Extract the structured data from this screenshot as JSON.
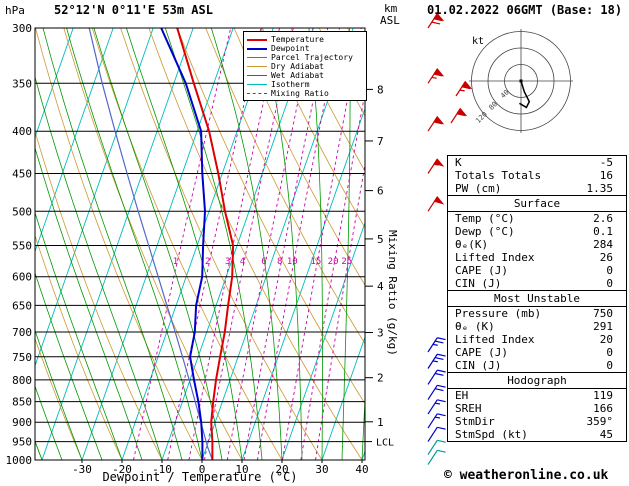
{
  "header": {
    "pressure_unit": "hPa",
    "station": "52°12'N 0°11'E 53m ASL",
    "datetime": "01.02.2022 06GMT (Base: 18)",
    "altitude_unit_top": "km",
    "altitude_unit_bottom": "ASL"
  },
  "axes": {
    "xlabel": "Dewpoint / Temperature (°C)",
    "right_label": "Mixing Ratio (g/kg)",
    "pressure_ticks": [
      300,
      350,
      400,
      450,
      500,
      550,
      600,
      650,
      700,
      750,
      800,
      850,
      900,
      950,
      1000
    ],
    "temp_ticks": [
      -30,
      -20,
      -10,
      0,
      10,
      20,
      30,
      40
    ],
    "km_ticks": [
      8,
      7,
      6,
      5,
      4,
      3,
      2,
      1
    ],
    "km_tick_pressures": [
      356,
      411,
      472,
      540,
      616,
      701,
      795,
      899
    ],
    "lcl_label": "LCL",
    "lcl_pressure": 950
  },
  "legend": {
    "items": [
      {
        "label": "Temperature",
        "color": "#dd0000",
        "weight": 2,
        "dash": false
      },
      {
        "label": "Dewpoint",
        "color": "#0000cc",
        "weight": 2,
        "dash": false
      },
      {
        "label": "Parcel Trajectory",
        "color": "#5566cc",
        "weight": 1,
        "dash": false
      },
      {
        "label": "Dry Adiabat",
        "color": "#cc9933",
        "weight": 1,
        "dash": false
      },
      {
        "label": "Wet Adiabat",
        "color": "#009900",
        "weight": 1,
        "dash": false
      },
      {
        "label": "Isotherm",
        "color": "#00bbbb",
        "weight": 1,
        "dash": false
      },
      {
        "label": "Mixing Ratio",
        "color": "#cc00aa",
        "weight": 1,
        "dash": true
      }
    ]
  },
  "stats": {
    "sections": [
      {
        "title": "",
        "rows": [
          [
            "K",
            "-5"
          ],
          [
            "Totals Totals",
            "16"
          ],
          [
            "PW (cm)",
            "1.35"
          ]
        ]
      },
      {
        "title": "Surface",
        "rows": [
          [
            "Temp (°C)",
            "2.6"
          ],
          [
            "Dewp (°C)",
            "0.1"
          ],
          [
            "θₑ(K)",
            "284"
          ],
          [
            "Lifted Index",
            "26"
          ],
          [
            "CAPE (J)",
            "0"
          ],
          [
            "CIN (J)",
            "0"
          ]
        ]
      },
      {
        "title": "Most Unstable",
        "rows": [
          [
            "Pressure (mb)",
            "750"
          ],
          [
            "θₑ (K)",
            "291"
          ],
          [
            "Lifted Index",
            "20"
          ],
          [
            "CAPE (J)",
            "0"
          ],
          [
            "CIN (J)",
            "0"
          ]
        ]
      },
      {
        "title": "Hodograph",
        "rows": [
          [
            "EH",
            "119"
          ],
          [
            "SREH",
            "166"
          ],
          [
            "StmDir",
            "359°"
          ],
          [
            "StmSpd (kt)",
            "45"
          ]
        ]
      }
    ]
  },
  "footer": {
    "copyright": "© weatheronline.co.uk"
  },
  "chart_data": {
    "type": "skewt-log-p",
    "pressure_range": [
      300,
      1000
    ],
    "temperature_profile": [
      [
        1000,
        2.6
      ],
      [
        950,
        1.0
      ],
      [
        900,
        -1.0
      ],
      [
        850,
        -2.3
      ],
      [
        800,
        -3.5
      ],
      [
        750,
        -4.5
      ],
      [
        700,
        -5.5
      ],
      [
        650,
        -7.0
      ],
      [
        600,
        -8.5
      ],
      [
        550,
        -11.0
      ],
      [
        500,
        -16.0
      ],
      [
        450,
        -21.0
      ],
      [
        400,
        -27.0
      ],
      [
        350,
        -35.0
      ],
      [
        300,
        -44.0
      ]
    ],
    "dewpoint_profile": [
      [
        1000,
        0.1
      ],
      [
        950,
        -1.5
      ],
      [
        900,
        -3.5
      ],
      [
        850,
        -6.0
      ],
      [
        800,
        -9.0
      ],
      [
        750,
        -12.0
      ],
      [
        700,
        -13.0
      ],
      [
        650,
        -15.0
      ],
      [
        600,
        -16.0
      ],
      [
        550,
        -18.5
      ],
      [
        500,
        -21.0
      ],
      [
        450,
        -25.0
      ],
      [
        400,
        -29.0
      ],
      [
        350,
        -37.0
      ],
      [
        300,
        -48.0
      ]
    ],
    "parcel_profile": [
      [
        1000,
        2.6
      ],
      [
        965,
        0.3
      ],
      [
        900,
        -3.6
      ],
      [
        850,
        -6.8
      ],
      [
        800,
        -10.2
      ],
      [
        750,
        -13.9
      ],
      [
        700,
        -17.9
      ],
      [
        650,
        -22.3
      ],
      [
        600,
        -27.0
      ],
      [
        550,
        -32.1
      ],
      [
        500,
        -37.7
      ],
      [
        450,
        -43.8
      ],
      [
        400,
        -50.5
      ],
      [
        350,
        -57.9
      ],
      [
        300,
        -66.0
      ]
    ],
    "profile_colors": {
      "temperature": "#dd0000",
      "dewpoint": "#0000cc",
      "parcel": "#5566cc"
    },
    "isotherms": {
      "min": -80,
      "max": 40,
      "step": 10,
      "color": "#00bbbb"
    },
    "dry_adiabats": {
      "min": -40,
      "max": 140,
      "step": 10,
      "color": "#cc9933"
    },
    "wet_adiabats": {
      "min": -55,
      "max": 45,
      "step": 5,
      "color": "#009900"
    },
    "mixing_ratio": {
      "values": [
        1,
        2,
        3,
        4,
        6,
        8,
        10,
        15,
        20,
        25
      ],
      "label_pressure": 589,
      "color": "#cc00aa"
    },
    "wind_barbs": [
      {
        "p": 300,
        "speed": 70,
        "color": "#cc0000"
      },
      {
        "p": 350,
        "speed": 65,
        "color": "#cc0000"
      },
      {
        "p": 400,
        "speed": 60,
        "color": "#cc0000"
      },
      {
        "p": 450,
        "speed": 55,
        "color": "#cc0000"
      },
      {
        "p": 500,
        "speed": 50,
        "color": "#cc0000"
      },
      {
        "p": 740,
        "speed": 25,
        "color": "#0000cc"
      },
      {
        "p": 775,
        "speed": 25,
        "color": "#0000cc"
      },
      {
        "p": 810,
        "speed": 20,
        "color": "#0000cc"
      },
      {
        "p": 845,
        "speed": 20,
        "color": "#0000cc"
      },
      {
        "p": 880,
        "speed": 15,
        "color": "#0000cc"
      },
      {
        "p": 915,
        "speed": 15,
        "color": "#0000cc"
      },
      {
        "p": 950,
        "speed": 10,
        "color": "#0000cc"
      },
      {
        "p": 985,
        "speed": 10,
        "color": "#009999"
      },
      {
        "p": 1013,
        "speed": 10,
        "color": "#009999"
      }
    ],
    "hodograph": {
      "unit": "kt",
      "rings_kt": [
        40,
        80,
        120
      ],
      "trace_kt": [
        [
          0,
          0
        ],
        [
          8,
          26
        ],
        [
          20,
          50
        ],
        [
          13,
          64
        ],
        [
          -4,
          54
        ]
      ],
      "side_barb_speeds": [
        65,
        60
      ]
    }
  }
}
